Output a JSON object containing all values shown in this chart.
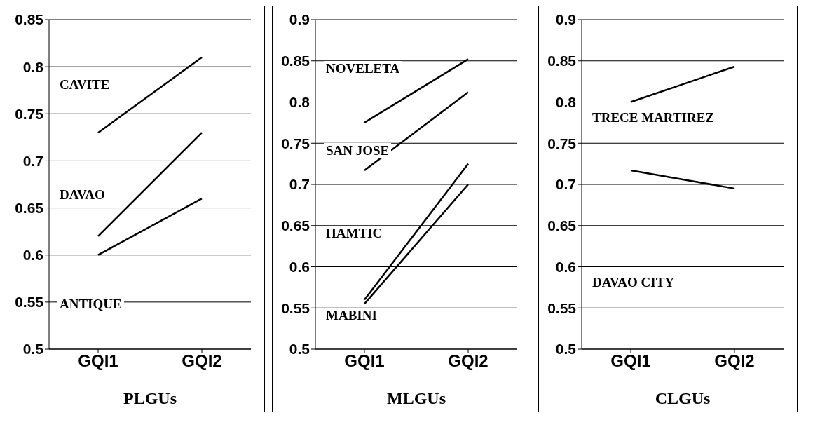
{
  "chart_data": [
    {
      "type": "line",
      "xlabel": "PLGUs",
      "categories": [
        "GQI1",
        "GQI2"
      ],
      "ylim": [
        0.5,
        0.85
      ],
      "yticks": [
        0.5,
        0.55,
        0.6,
        0.65,
        0.7,
        0.75,
        0.8,
        0.85
      ],
      "grid": "y",
      "legend": false,
      "marker": "none",
      "line_style": "solid",
      "series": [
        {
          "color": "#000000",
          "values": [
            0.73,
            0.81
          ]
        },
        {
          "color": "#000000",
          "values": [
            0.62,
            0.73
          ]
        },
        {
          "color": "#000000",
          "values": [
            0.6,
            0.66
          ]
        }
      ],
      "annotations": [
        "CAVITE",
        "DAVAO",
        "ANTIQUE"
      ]
    },
    {
      "type": "line",
      "xlabel": "MLGUs",
      "categories": [
        "GQI1",
        "GQI2"
      ],
      "ylim": [
        0.5,
        0.9
      ],
      "yticks": [
        0.5,
        0.55,
        0.6,
        0.65,
        0.7,
        0.75,
        0.8,
        0.85,
        0.9
      ],
      "grid": "y",
      "legend": false,
      "marker": "none",
      "line_style": "solid",
      "series": [
        {
          "color": "#000000",
          "values": [
            0.775,
            0.852
          ]
        },
        {
          "color": "#000000",
          "values": [
            0.717,
            0.812
          ]
        },
        {
          "color": "#000000",
          "values": [
            0.56,
            0.725
          ]
        },
        {
          "color": "#000000",
          "values": [
            0.555,
            0.7
          ]
        }
      ],
      "annotations": [
        "NOVELETA",
        "SAN JOSE",
        "HAMTIC",
        "MABINI"
      ]
    },
    {
      "type": "line",
      "xlabel": "CLGUs",
      "categories": [
        "GQI1",
        "GQI2"
      ],
      "ylim": [
        0.5,
        0.9
      ],
      "yticks": [
        0.5,
        0.55,
        0.6,
        0.65,
        0.7,
        0.75,
        0.8,
        0.85,
        0.9
      ],
      "grid": "y",
      "legend": false,
      "marker": "none",
      "line_style": "solid",
      "series": [
        {
          "color": "#000000",
          "values": [
            0.8,
            0.843
          ]
        },
        {
          "color": "#000000",
          "values": [
            0.717,
            0.695
          ]
        }
      ],
      "annotations": [
        "TRECE MARTIREZ",
        "DAVAO CITY"
      ]
    }
  ]
}
